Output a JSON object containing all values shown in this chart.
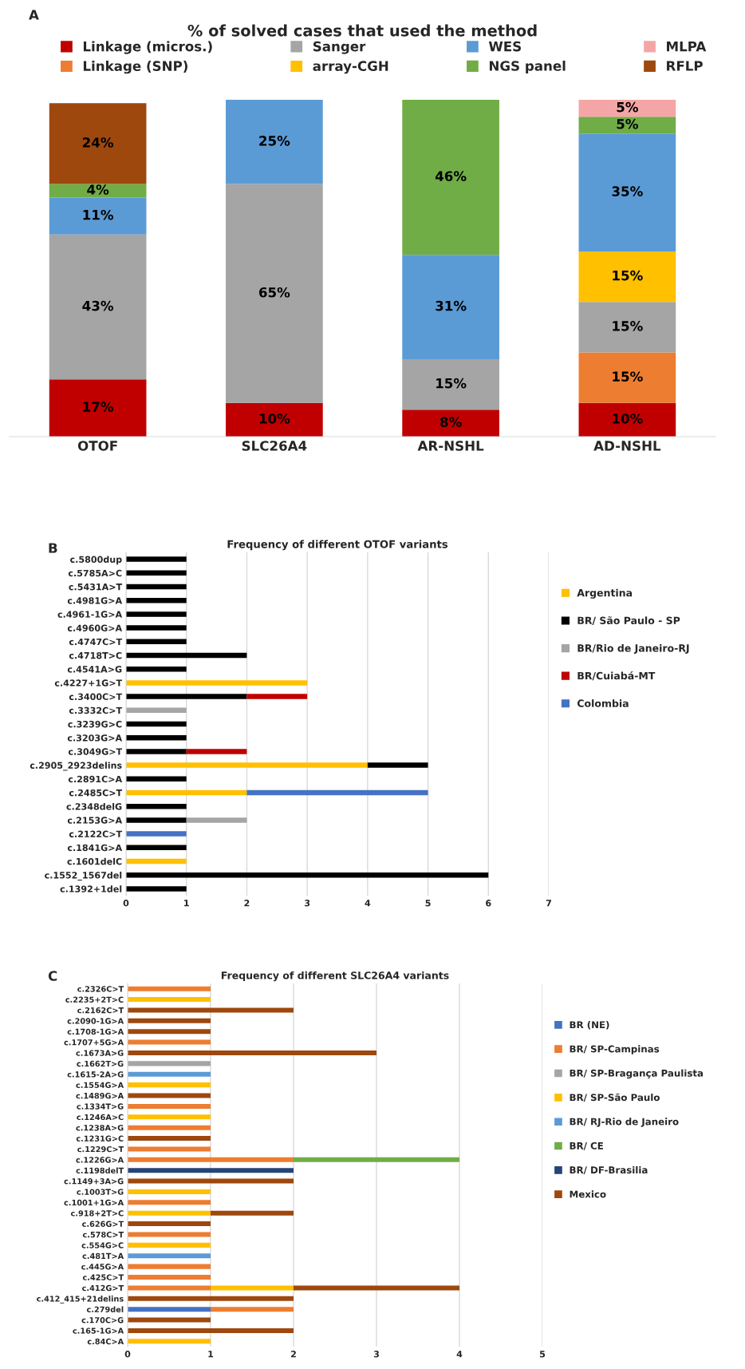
{
  "chart_data": [
    {
      "type": "bar",
      "stacked": true,
      "title": "% of solved cases that used the method",
      "annotations": [
        "A"
      ],
      "categories": [
        "OTOF",
        "SLC26A4",
        "AR-NSHL",
        "AD-NSHL"
      ],
      "legend": "top",
      "tick_labels": "x",
      "series": [
        {
          "name": "Linkage (micros.)",
          "color": "#c00000",
          "values": [
            17,
            10,
            8,
            10
          ],
          "value_labels": [
            "17%",
            "10%",
            "8%",
            "10%"
          ]
        },
        {
          "name": "Linkage (SNP)",
          "color": "#ed7d31",
          "values": [
            null,
            null,
            null,
            15
          ],
          "value_labels": [
            null,
            null,
            null,
            "15%"
          ]
        },
        {
          "name": "Sanger",
          "color": "#a5a5a5",
          "values": [
            43,
            65,
            15,
            15
          ],
          "value_labels": [
            "43%",
            "65%",
            "15%",
            "15%"
          ]
        },
        {
          "name": "array-CGH",
          "color": "#ffc000",
          "values": [
            null,
            null,
            null,
            15
          ],
          "value_labels": [
            null,
            null,
            null,
            "15%"
          ]
        },
        {
          "name": "WES",
          "color": "#5b9bd5",
          "values": [
            11,
            25,
            31,
            35
          ],
          "value_labels": [
            "11%",
            "25%",
            "31%",
            "35%"
          ]
        },
        {
          "name": "NGS panel",
          "color": "#70ad47",
          "values": [
            4,
            null,
            46,
            5
          ],
          "value_labels": [
            "4%",
            null,
            "46%",
            "5%"
          ]
        },
        {
          "name": "MLPA",
          "color": "#f4a6a6",
          "values": [
            null,
            null,
            null,
            5
          ],
          "value_labels": [
            null,
            null,
            null,
            "5%"
          ]
        },
        {
          "name": "RFLP",
          "color": "#9e480e",
          "values": [
            24,
            null,
            null,
            null
          ],
          "value_labels": [
            "24%",
            null,
            null,
            null
          ]
        }
      ]
    },
    {
      "type": "bar",
      "stacked": true,
      "orientation": "horizontal",
      "title": "Frequency of different OTOF variants",
      "annotations": [
        "B"
      ],
      "legend": "right",
      "grid": "x",
      "xlim": [
        0,
        7
      ],
      "xticks": [
        0,
        1,
        2,
        3,
        4,
        5,
        6,
        7
      ],
      "categories": [
        "c.5800dup",
        "c.5785A>C",
        "c.5431A>T",
        "c.4981G>A",
        "c.4961-1G>A",
        "c.4960G>A",
        "c.4747C>T",
        "c.4718T>C",
        "c.4541A>G",
        "c.4227+1G>T",
        "c.3400C>T",
        "c.3332C>T",
        "c.3239G>C",
        "c.3203G>A",
        "c.3049G>T",
        "c.2905_2923delins",
        "c.2891C>A",
        "c.2485C>T",
        "c.2348delG",
        "c.2153G>A",
        "c.2122C>T",
        "c.1841G>A",
        "c.1601delC",
        "c.1552_1567del",
        "c.1392+1del"
      ],
      "series": [
        {
          "name": "Argentina",
          "color": "#ffc000",
          "values": [
            null,
            null,
            null,
            null,
            null,
            null,
            null,
            null,
            null,
            3,
            null,
            null,
            null,
            null,
            null,
            4,
            null,
            2,
            null,
            null,
            null,
            null,
            1,
            null,
            null
          ]
        },
        {
          "name": "BR/ São Paulo - SP",
          "color": "#000000",
          "values": [
            1,
            1,
            1,
            1,
            1,
            1,
            1,
            2,
            1,
            null,
            2,
            null,
            1,
            1,
            1,
            1,
            1,
            null,
            1,
            1,
            null,
            1,
            null,
            6,
            1
          ]
        },
        {
          "name": "BR/Rio de Janeiro-RJ",
          "color": "#a5a5a5",
          "values": [
            null,
            null,
            null,
            null,
            null,
            null,
            null,
            null,
            null,
            null,
            null,
            1,
            null,
            null,
            null,
            null,
            null,
            null,
            null,
            1,
            null,
            null,
            null,
            null,
            null
          ]
        },
        {
          "name": "BR/Cuiabá-MT",
          "color": "#c00000",
          "values": [
            null,
            null,
            null,
            null,
            null,
            null,
            null,
            null,
            null,
            null,
            1,
            null,
            null,
            null,
            1,
            null,
            null,
            null,
            null,
            null,
            null,
            null,
            null,
            null,
            null
          ]
        },
        {
          "name": "Colombia",
          "color": "#4472c4",
          "values": [
            null,
            null,
            null,
            null,
            null,
            null,
            null,
            null,
            null,
            null,
            null,
            null,
            null,
            null,
            null,
            null,
            null,
            3,
            null,
            null,
            1,
            null,
            null,
            null,
            null
          ]
        }
      ]
    },
    {
      "type": "bar",
      "stacked": true,
      "orientation": "horizontal",
      "title": "Frequency of different SLC26A4 variants",
      "annotations": [
        "C"
      ],
      "legend": "right",
      "grid": "x",
      "xlim": [
        0,
        5
      ],
      "xticks": [
        0,
        1,
        2,
        3,
        4,
        5
      ],
      "categories": [
        "c.2326C>T",
        "c.2235+2T>C",
        "c.2162C>T",
        "c.2090-1G>A",
        "c.1708-1G>A",
        "c.1707+5G>A",
        "c.1673A>G",
        "c.1662T>G",
        "c.1615-2A>G",
        "c.1554G>A",
        "c.1489G>A",
        "c.1334T>G",
        "c.1246A>C",
        "c.1238A>G",
        "c.1231G>C",
        "c.1229C>T",
        "c.1226G>A",
        "c.1198delT",
        "c.1149+3A>G",
        "c.1003T>G",
        "c.1001+1G>A",
        "c.918+2T>C",
        "c.626G>T",
        "c.578C>T",
        "c.554G>C",
        "c.481T>A",
        "c.445G>A",
        "c.425C>T",
        "c.412G>T",
        "c.412_415+21delins",
        "c.279del",
        "c.170C>G",
        "c.165-1G>A",
        "c.84C>A"
      ],
      "series": [
        {
          "name": "BR (NE)",
          "color": "#4472c4",
          "values": [
            null,
            null,
            null,
            null,
            null,
            null,
            null,
            null,
            null,
            null,
            null,
            null,
            null,
            null,
            null,
            null,
            null,
            null,
            null,
            null,
            null,
            null,
            null,
            null,
            null,
            null,
            null,
            null,
            null,
            null,
            1,
            null,
            null,
            null
          ]
        },
        {
          "name": "BR/ SP-Campinas",
          "color": "#ed7d31",
          "values": [
            1,
            null,
            null,
            null,
            null,
            1,
            null,
            null,
            null,
            null,
            null,
            1,
            null,
            1,
            null,
            1,
            2,
            null,
            null,
            null,
            1,
            null,
            null,
            1,
            null,
            null,
            1,
            1,
            1,
            null,
            1,
            null,
            null,
            null
          ]
        },
        {
          "name": "BR/ SP-Bragança Paulista",
          "color": "#a5a5a5",
          "values": [
            null,
            null,
            null,
            null,
            null,
            null,
            null,
            1,
            null,
            null,
            null,
            null,
            null,
            null,
            null,
            null,
            null,
            null,
            null,
            null,
            null,
            null,
            null,
            null,
            null,
            null,
            null,
            null,
            null,
            null,
            null,
            null,
            null,
            null
          ]
        },
        {
          "name": "BR/ SP-São Paulo",
          "color": "#ffc000",
          "values": [
            null,
            1,
            null,
            null,
            null,
            null,
            null,
            null,
            null,
            1,
            null,
            null,
            1,
            null,
            null,
            null,
            null,
            null,
            null,
            1,
            null,
            1,
            null,
            null,
            1,
            null,
            null,
            null,
            1,
            null,
            null,
            null,
            null,
            1
          ]
        },
        {
          "name": "BR/ RJ-Rio de Janeiro",
          "color": "#5b9bd5",
          "values": [
            null,
            null,
            null,
            null,
            null,
            null,
            null,
            null,
            1,
            null,
            null,
            null,
            null,
            null,
            null,
            null,
            null,
            null,
            null,
            null,
            null,
            null,
            null,
            null,
            null,
            1,
            null,
            null,
            null,
            null,
            null,
            null,
            null,
            null
          ]
        },
        {
          "name": "BR/ CE",
          "color": "#70ad47",
          "values": [
            null,
            null,
            null,
            null,
            null,
            null,
            null,
            null,
            null,
            null,
            null,
            null,
            null,
            null,
            null,
            null,
            2,
            null,
            null,
            null,
            null,
            null,
            null,
            null,
            null,
            null,
            null,
            null,
            null,
            null,
            null,
            null,
            null,
            null
          ]
        },
        {
          "name": "BR/ DF-Brasilia",
          "color": "#264478",
          "values": [
            null,
            null,
            null,
            null,
            null,
            null,
            null,
            null,
            null,
            null,
            null,
            null,
            null,
            null,
            null,
            null,
            null,
            2,
            null,
            null,
            null,
            null,
            null,
            null,
            null,
            null,
            null,
            null,
            null,
            null,
            null,
            null,
            null,
            null
          ]
        },
        {
          "name": "Mexico",
          "color": "#9e480e",
          "values": [
            null,
            null,
            2,
            1,
            1,
            null,
            3,
            null,
            null,
            null,
            1,
            null,
            null,
            null,
            1,
            null,
            null,
            null,
            2,
            null,
            null,
            1,
            1,
            null,
            null,
            null,
            null,
            null,
            2,
            2,
            null,
            1,
            2,
            null
          ]
        }
      ]
    }
  ]
}
